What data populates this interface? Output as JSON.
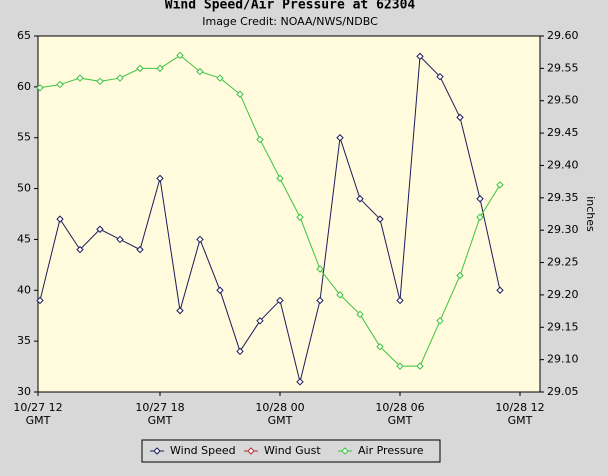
{
  "chart_data": {
    "type": "line",
    "title": "Wind Speed/Air Pressure at 62304",
    "subtitle": "Image Credit: NOAA/NWS/NDBC",
    "y2label": "inches",
    "x": [
      0,
      1,
      2,
      3,
      4,
      5,
      6,
      7,
      8,
      9,
      10,
      11,
      12,
      13,
      14,
      15,
      16,
      17,
      18,
      19,
      20,
      21,
      22,
      23
    ],
    "xlim": [
      -0.1,
      25
    ],
    "xticks": [
      {
        "value": -0.1,
        "label": "10/27 12 GMT"
      },
      {
        "value": 6,
        "label": "10/27 18 GMT"
      },
      {
        "value": 12,
        "label": "10/28 00 GMT"
      },
      {
        "value": 18,
        "label": "10/28 06 GMT"
      },
      {
        "value": 24,
        "label": "10/28 12 GMT"
      }
    ],
    "ylim": [
      30,
      65
    ],
    "yticks": [
      30,
      35,
      40,
      45,
      50,
      55,
      60,
      65
    ],
    "y2lim": [
      29.05,
      29.6
    ],
    "y2ticks": [
      29.05,
      {
        "value": 29.1,
        "label": "29.10"
      },
      29.15,
      {
        "value": 29.2,
        "label": "29.20"
      },
      29.25,
      {
        "value": 29.3,
        "label": "29.30"
      },
      29.35,
      {
        "value": 29.4,
        "label": "29.40"
      },
      29.45,
      {
        "value": 29.5,
        "label": "29.50"
      },
      29.55,
      {
        "value": 29.6,
        "label": "29.60"
      }
    ],
    "grid": false,
    "legend": "bottom",
    "series": [
      {
        "name": "Wind Speed",
        "color": "#1c1c5c",
        "values": [
          39,
          47,
          44,
          46,
          45,
          44,
          51,
          38,
          45,
          40,
          34,
          37,
          39,
          31,
          39,
          55,
          49,
          47,
          39,
          63,
          61,
          57,
          49,
          40
        ]
      },
      {
        "name": "Wind Gust",
        "color": "#b03030",
        "values": [
          null,
          null,
          null,
          null,
          null,
          null,
          null,
          null,
          null,
          null,
          null,
          null,
          null,
          null,
          null,
          null,
          null,
          null,
          null,
          null,
          null,
          null,
          null,
          null
        ]
      },
      {
        "name": "Air Pressure",
        "color": "#3cc43c",
        "axis": "y2",
        "values": [
          29.52,
          29.525,
          29.535,
          29.53,
          29.535,
          29.55,
          29.55,
          29.57,
          29.545,
          29.535,
          29.51,
          29.44,
          29.38,
          29.32,
          29.24,
          29.2,
          29.17,
          29.12,
          29.09,
          29.09,
          29.16,
          29.23,
          29.32,
          29.37
        ]
      }
    ]
  }
}
